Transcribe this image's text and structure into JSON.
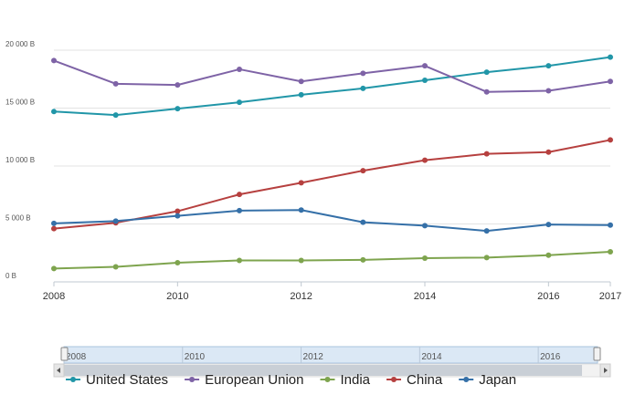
{
  "chart_data": {
    "type": "line",
    "title": "",
    "xlabel": "",
    "ylabel": "",
    "x": [
      2008,
      2009,
      2010,
      2011,
      2012,
      2013,
      2014,
      2015,
      2016,
      2017
    ],
    "xticks": [
      "2008",
      "2010",
      "2012",
      "2014",
      "2016",
      "2017"
    ],
    "ylim": [
      0,
      20000
    ],
    "yticks": [
      {
        "value": 0,
        "label": "0 B"
      },
      {
        "value": 5000,
        "label": "5 000 B"
      },
      {
        "value": 10000,
        "label": "10 000 B"
      },
      {
        "value": 15000,
        "label": "15 000 B"
      },
      {
        "value": 20000,
        "label": "20 000 B"
      }
    ],
    "grid": true,
    "legend": "bottom",
    "series": [
      {
        "name": "United States",
        "color": "#2196a8",
        "values": [
          14700,
          14400,
          14950,
          15500,
          16150,
          16700,
          17400,
          18100,
          18650,
          19400
        ]
      },
      {
        "name": "European Union",
        "color": "#7e63a6",
        "values": [
          19100,
          17100,
          17000,
          18350,
          17300,
          18000,
          18650,
          16400,
          16500,
          17300
        ]
      },
      {
        "name": "India",
        "color": "#7ea44e",
        "values": [
          1150,
          1300,
          1650,
          1850,
          1850,
          1900,
          2050,
          2100,
          2300,
          2600
        ]
      },
      {
        "name": "China",
        "color": "#b6403f",
        "values": [
          4600,
          5100,
          6100,
          7550,
          8550,
          9600,
          10500,
          11050,
          11200,
          12250
        ]
      },
      {
        "name": "Japan",
        "color": "#3570a8",
        "values": [
          5050,
          5250,
          5700,
          6150,
          6200,
          5150,
          4850,
          4400,
          4950,
          4900
        ]
      }
    ],
    "navigator": {
      "ticks": [
        "2008",
        "2010",
        "2012",
        "2014",
        "2016"
      ]
    }
  }
}
